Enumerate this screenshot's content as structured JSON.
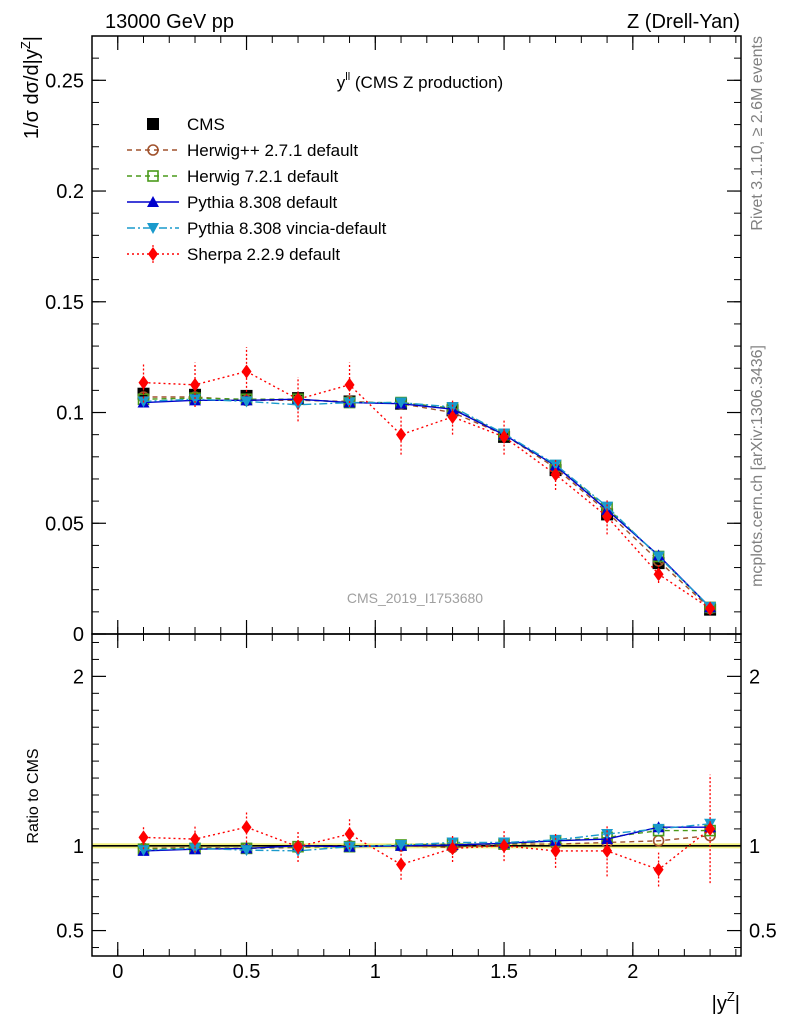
{
  "header": {
    "left": "13000 GeV pp",
    "right": "Z (Drell-Yan)"
  },
  "side_labels": {
    "rivet": "Rivet 3.1.10, ≥ 2.6M events",
    "mcplots": "mcplots.cern.ch [arXiv:1306.3436]"
  },
  "chart_data": [
    {
      "type": "scatter",
      "panel": "main",
      "title": "yˡˡ (CMS Z production)",
      "title_main": "y",
      "title_sup": "ll",
      "title_rest": " (CMS Z production)",
      "watermark": "CMS_2019_I1753680",
      "ylabel": "1/σ dσ/d|yᵶ|",
      "ylabel_main": "1/σ dσ/d|y",
      "ylabel_sup": "Z",
      "ylabel_end": "|",
      "xlabel": "|yᵶ|",
      "xlim": [
        -0.1,
        2.42
      ],
      "ylim": [
        0,
        0.27
      ],
      "x_ticks": [
        0,
        0.5,
        1,
        1.5,
        2
      ],
      "x_tick_labels": [
        "0",
        "0.5",
        "1",
        "1.5",
        "2"
      ],
      "y_ticks": [
        0,
        0.05,
        0.1,
        0.15,
        0.2,
        0.25
      ],
      "y_tick_labels": [
        "0",
        "0.05",
        "0.1",
        "0.15",
        "0.2",
        "0.25"
      ],
      "x": [
        0.1,
        0.3,
        0.5,
        0.7,
        0.9,
        1.1,
        1.3,
        1.5,
        1.7,
        1.9,
        2.1,
        2.3
      ],
      "series": [
        {
          "name": "CMS",
          "color": "#000000",
          "marker": "square-filled",
          "line": "none",
          "values": [
            0.1085,
            0.108,
            0.1075,
            0.1065,
            0.105,
            0.104,
            0.101,
            0.089,
            0.074,
            0.054,
            0.032,
            0.011
          ]
        },
        {
          "name": "Herwig++ 2.7.1 default",
          "color": "#a0522d",
          "marker": "circle-open",
          "line": "dashed",
          "values": [
            0.107,
            0.107,
            0.1055,
            0.1055,
            0.105,
            0.104,
            0.1,
            0.09,
            0.075,
            0.055,
            0.033,
            0.0115
          ]
        },
        {
          "name": "Herwig 7.2.1 default",
          "color": "#4a9a1a",
          "marker": "square-open",
          "line": "dashed",
          "values": [
            0.106,
            0.1065,
            0.106,
            0.106,
            0.1045,
            0.1045,
            0.102,
            0.09,
            0.076,
            0.057,
            0.035,
            0.012
          ]
        },
        {
          "name": "Pythia 8.308 default",
          "color": "#0000cc",
          "marker": "triangle-up",
          "line": "solid",
          "values": [
            0.1045,
            0.1055,
            0.1055,
            0.106,
            0.1045,
            0.104,
            0.1015,
            0.09,
            0.076,
            0.056,
            0.0355,
            0.012
          ]
        },
        {
          "name": "Pythia 8.308 vincia-default",
          "color": "#1a9acc",
          "marker": "triangle-down",
          "line": "dashdot",
          "values": [
            0.105,
            0.106,
            0.105,
            0.1035,
            0.1045,
            0.1045,
            0.1025,
            0.0905,
            0.0765,
            0.0575,
            0.035,
            0.0122
          ]
        },
        {
          "name": "Sherpa 2.2.9 default",
          "color": "#ff0000",
          "marker": "diamond",
          "line": "dotted",
          "values": [
            0.1135,
            0.1125,
            0.1185,
            0.106,
            0.1125,
            0.09,
            0.098,
            0.089,
            0.072,
            0.053,
            0.027,
            0.0115
          ],
          "errors": [
            0.009,
            0.01,
            0.011,
            0.01,
            0.01,
            0.009,
            0.008,
            0.008,
            0.007,
            0.008,
            0.004,
            0.003
          ]
        }
      ]
    },
    {
      "type": "scatter",
      "panel": "ratio",
      "ylabel": "Ratio to CMS",
      "ylim": [
        0.35,
        2.25
      ],
      "y_ticks": [
        0.5,
        1,
        2
      ],
      "y_tick_labels": [
        "0.5",
        "1",
        "2"
      ],
      "reference_band": [
        0.985,
        1.015
      ],
      "x": [
        0.1,
        0.3,
        0.5,
        0.7,
        0.9,
        1.1,
        1.3,
        1.5,
        1.7,
        1.9,
        2.1,
        2.3
      ],
      "series": [
        {
          "name": "Herwig++ 2.7.1 default",
          "color": "#a0522d",
          "marker": "circle-open",
          "line": "dashed",
          "values": [
            0.985,
            0.99,
            0.985,
            0.99,
            1.0,
            1.0,
            0.99,
            1.01,
            1.01,
            1.02,
            1.03,
            1.06
          ]
        },
        {
          "name": "Herwig 7.2.1 default",
          "color": "#4a9a1a",
          "marker": "square-open",
          "line": "dashed",
          "values": [
            0.98,
            0.985,
            0.985,
            0.995,
            0.995,
            1.005,
            1.01,
            1.01,
            1.03,
            1.05,
            1.09,
            1.09
          ]
        },
        {
          "name": "Pythia 8.308 default",
          "color": "#0000cc",
          "marker": "triangle-up",
          "line": "solid",
          "values": [
            0.97,
            0.98,
            0.985,
            1.0,
            0.995,
            1.0,
            1.005,
            1.015,
            1.03,
            1.04,
            1.11,
            1.11
          ]
        },
        {
          "name": "Pythia 8.308 vincia-default",
          "color": "#1a9acc",
          "marker": "triangle-down",
          "line": "dashdot",
          "values": [
            0.975,
            0.985,
            0.975,
            0.97,
            0.995,
            1.005,
            1.02,
            1.02,
            1.035,
            1.07,
            1.1,
            1.13
          ]
        },
        {
          "name": "Sherpa 2.2.9 default",
          "color": "#ff0000",
          "marker": "diamond",
          "line": "dotted",
          "values": [
            1.05,
            1.04,
            1.11,
            0.995,
            1.07,
            0.89,
            0.985,
            1.0,
            0.97,
            0.97,
            0.86,
            1.1
          ],
          "errors": [
            0.07,
            0.08,
            0.09,
            0.09,
            0.09,
            0.09,
            0.08,
            0.09,
            0.1,
            0.15,
            0.1,
            0.32
          ]
        }
      ]
    }
  ]
}
